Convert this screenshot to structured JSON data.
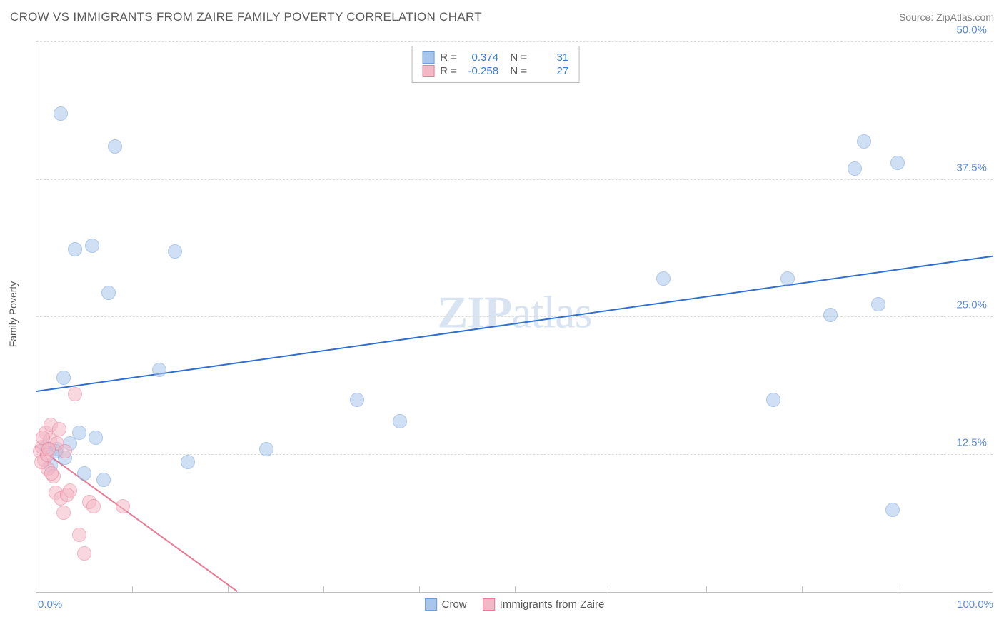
{
  "title": "CROW VS IMMIGRANTS FROM ZAIRE FAMILY POVERTY CORRELATION CHART",
  "source": "Source: ZipAtlas.com",
  "watermark": {
    "zip": "ZIP",
    "atlas": "atlas"
  },
  "ylabel": "Family Poverty",
  "chart": {
    "type": "scatter",
    "xlim": [
      0,
      100
    ],
    "ylim": [
      0,
      50
    ],
    "xtick_labels": [
      "0.0%",
      "100.0%"
    ],
    "xtick_positions": [
      0,
      100
    ],
    "ytick_labels": [
      "12.5%",
      "25.0%",
      "37.5%",
      "50.0%"
    ],
    "ytick_positions": [
      12.5,
      25,
      37.5,
      50
    ],
    "x_minor_ticks": [
      10,
      20,
      30,
      40,
      50,
      60,
      70,
      80,
      90
    ],
    "background_color": "#ffffff",
    "grid_color": "#dcdcdc",
    "axis_label_color": "#5b8bd4",
    "point_radius": 10,
    "point_opacity": 0.55,
    "series": [
      {
        "name": "Crow",
        "fill_color": "#a8c6ec",
        "stroke_color": "#6d9cd9",
        "R": "0.374",
        "N": "31",
        "trend": {
          "x1": 0,
          "y1": 18.2,
          "x2": 100,
          "y2": 30.5,
          "color": "#2e6fd0",
          "width": 2,
          "dash": false
        },
        "points": [
          [
            2.5,
            43.5
          ],
          [
            8.2,
            40.5
          ],
          [
            4.0,
            31.2
          ],
          [
            5.8,
            31.5
          ],
          [
            7.5,
            27.2
          ],
          [
            14.5,
            31.0
          ],
          [
            2.8,
            19.5
          ],
          [
            12.8,
            20.2
          ],
          [
            1.0,
            13.2
          ],
          [
            2.2,
            13.0
          ],
          [
            3.0,
            12.2
          ],
          [
            4.5,
            14.5
          ],
          [
            6.2,
            14.0
          ],
          [
            5.0,
            10.8
          ],
          [
            7.0,
            10.2
          ],
          [
            15.8,
            11.8
          ],
          [
            24.0,
            13.0
          ],
          [
            33.5,
            17.5
          ],
          [
            38.0,
            15.5
          ],
          [
            65.5,
            28.5
          ],
          [
            77.0,
            17.5
          ],
          [
            78.5,
            28.5
          ],
          [
            83.0,
            25.2
          ],
          [
            85.5,
            38.5
          ],
          [
            88.0,
            26.2
          ],
          [
            89.5,
            7.5
          ],
          [
            86.5,
            41.0
          ],
          [
            90.0,
            39.0
          ],
          [
            1.5,
            11.5
          ],
          [
            2.0,
            12.8
          ],
          [
            3.5,
            13.5
          ]
        ]
      },
      {
        "name": "Immigrants from Zaire",
        "fill_color": "#f3b8c5",
        "stroke_color": "#e87b96",
        "R": "-0.258",
        "N": "27",
        "trend": {
          "x1": 0,
          "y1": 13.2,
          "x2": 21,
          "y2": 0,
          "color": "#e87b96",
          "width": 2,
          "dash": false
        },
        "trend_ext": {
          "x1": 0,
          "y1": 13.2,
          "x2": 21,
          "y2": 0,
          "color": "#f3c4cf",
          "width": 1,
          "dash": true
        },
        "points": [
          [
            0.4,
            12.8
          ],
          [
            0.6,
            13.2
          ],
          [
            0.8,
            12.0
          ],
          [
            1.0,
            14.5
          ],
          [
            1.2,
            11.2
          ],
          [
            1.4,
            13.8
          ],
          [
            1.5,
            15.2
          ],
          [
            1.8,
            10.5
          ],
          [
            2.0,
            9.0
          ],
          [
            2.2,
            13.5
          ],
          [
            2.5,
            8.5
          ],
          [
            2.8,
            7.2
          ],
          [
            3.0,
            12.8
          ],
          [
            3.5,
            9.2
          ],
          [
            4.0,
            18.0
          ],
          [
            4.5,
            5.2
          ],
          [
            5.0,
            3.5
          ],
          [
            5.5,
            8.2
          ],
          [
            6.0,
            7.8
          ],
          [
            0.5,
            11.8
          ],
          [
            0.7,
            14.0
          ],
          [
            1.1,
            12.5
          ],
          [
            1.6,
            10.8
          ],
          [
            3.2,
            8.8
          ],
          [
            9.0,
            7.8
          ],
          [
            2.4,
            14.8
          ],
          [
            1.3,
            13.0
          ]
        ]
      }
    ]
  },
  "legend": {
    "items": [
      {
        "label": "Crow",
        "fill": "#a8c6ec",
        "stroke": "#6d9cd9"
      },
      {
        "label": "Immigrants from Zaire",
        "fill": "#f3b8c5",
        "stroke": "#e87b96"
      }
    ]
  }
}
